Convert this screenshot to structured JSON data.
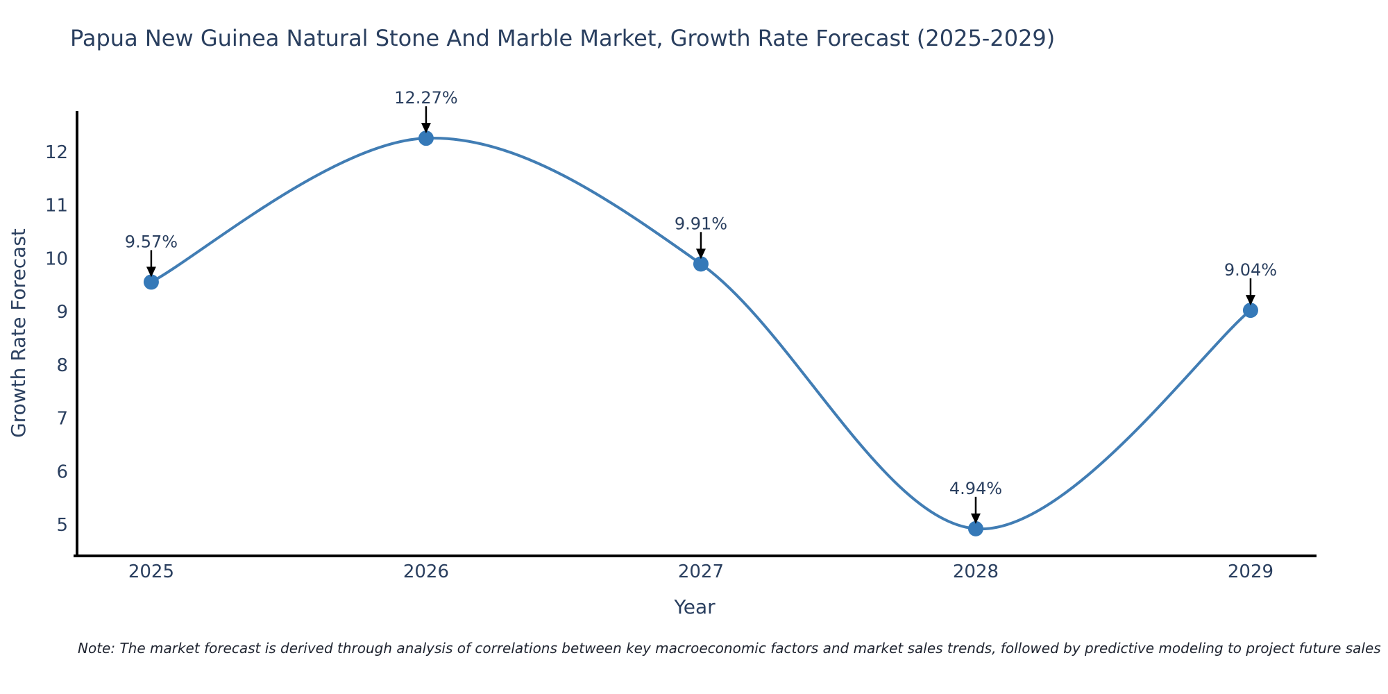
{
  "chart": {
    "title": "Papua New Guinea Natural Stone And Marble Market, Growth Rate Forecast (2025-2029)",
    "xlabel": "Year",
    "ylabel": "Growth Rate Forecast",
    "note": "Note: The market forecast is derived through analysis of correlations between key macroeconomic factors and market sales trends, followed by predictive modeling to project future sales"
  },
  "chart_data": {
    "type": "line",
    "line_shape": "spline",
    "x": [
      2025,
      2026,
      2027,
      2028,
      2029
    ],
    "values": [
      9.57,
      12.27,
      9.91,
      4.94,
      9.04
    ],
    "point_labels": [
      "9.57%",
      "12.27%",
      "9.91%",
      "4.94%",
      "9.04%"
    ],
    "title": "Papua New Guinea Natural Stone And Marble Market, Growth Rate Forecast (2025-2029)",
    "xlabel": "Year",
    "ylabel": "Growth Rate Forecast",
    "xlim": [
      2024.73,
      2029.24
    ],
    "ylim": [
      4.43,
      12.78
    ],
    "yticks": [
      5,
      6,
      7,
      8,
      9,
      10,
      11,
      12
    ],
    "grid": false,
    "legend": "none",
    "colors": {
      "line": "#417db4",
      "marker": "#3579b8",
      "arrow": "#000000",
      "axis": "#000000",
      "text": "#2a3f5f"
    }
  }
}
